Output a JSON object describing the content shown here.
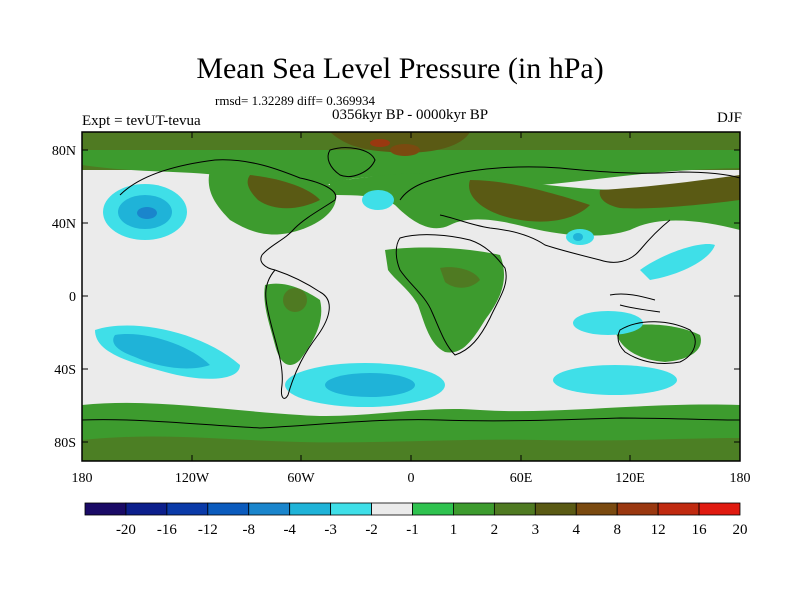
{
  "figure": {
    "title": "Mean Sea Level Pressure (in hPa)",
    "stats": "rmsd= 1.32289 diff= 0.369934",
    "experiment": "Expt = tevUT-tevua",
    "period": "0356kyr BP - 0000kyr BP",
    "season": "DJF"
  },
  "axes": {
    "lat_ticks": [
      "80N",
      "40N",
      "0",
      "40S",
      "80S"
    ],
    "lon_ticks": [
      "180",
      "120W",
      "60W",
      "0",
      "60E",
      "120E",
      "180"
    ]
  },
  "colorbar": {
    "labels": [
      "-20",
      "-16",
      "-12",
      "-8",
      "-4",
      "-3",
      "-2",
      "-1",
      "1",
      "2",
      "3",
      "4",
      "8",
      "12",
      "16",
      "20"
    ],
    "colors": [
      "#1a0a66",
      "#0c1f8c",
      "#0a3aa8",
      "#0b5bbd",
      "#1a85cc",
      "#1fb3d8",
      "#3fdfe8",
      "#ebebeb",
      "#2fc24f",
      "#3d9b2e",
      "#4f7a22",
      "#5a5a14",
      "#7a4a10",
      "#9a3810",
      "#c02a10",
      "#e01a10"
    ]
  },
  "chart_data": {
    "type": "heatmap",
    "title": "Mean Sea Level Pressure (in hPa)",
    "xlabel": "",
    "ylabel": "",
    "xlim": [
      -180,
      180
    ],
    "ylim": [
      -90,
      90
    ],
    "contour_levels": [
      -20,
      -16,
      -12,
      -8,
      -4,
      -3,
      -2,
      -1,
      1,
      2,
      3,
      4,
      8,
      12,
      16,
      20
    ],
    "features": [
      {
        "name": "North Pacific low anomaly",
        "lon": -145,
        "lat": 45,
        "value_min": -4
      },
      {
        "name": "South Pacific low anomaly",
        "lon": -140,
        "lat": -30,
        "value_min": -4
      },
      {
        "name": "South Atlantic low anomaly",
        "lon": -15,
        "lat": -48,
        "value_min": -4
      },
      {
        "name": "Southern Indian Ocean low anomaly",
        "lon": 125,
        "lat": -46,
        "value_min": -3
      },
      {
        "name": "Northern high-latitude high anomaly",
        "lon": 0,
        "lat": 82,
        "value_max": 12
      },
      {
        "name": "Eurasia high anomaly",
        "lon": 60,
        "lat": 50,
        "value_max": 8
      }
    ]
  }
}
